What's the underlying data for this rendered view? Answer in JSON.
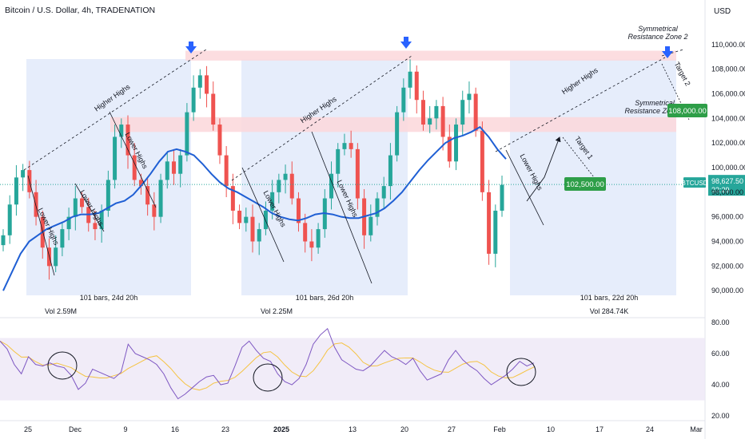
{
  "header": {
    "title": "Bitcoin / U.S. Dollar, 4h, TRADENATION",
    "currency": "USD"
  },
  "chart_data": {
    "type": "line",
    "price_axis": {
      "ylim": [
        88000,
        112000
      ],
      "ticks": [
        "110,000.00",
        "108,000.00",
        "106,000.00",
        "104,000.00",
        "102,000.00",
        "100,000.00",
        "98,000.00",
        "96,000.00",
        "94,000.00",
        "92,000.00",
        "90,000.00"
      ]
    },
    "rsi_axis": {
      "ylim": [
        18,
        82
      ],
      "ticks": [
        "80.00",
        "60.00",
        "40.00",
        "20.00"
      ]
    },
    "time_axis": {
      "labels": [
        "25",
        "Dec",
        "9",
        "16",
        "23",
        "2025",
        "13",
        "20",
        "27",
        "Feb",
        "10",
        "17",
        "24",
        "Mar"
      ],
      "bold": [
        "2025"
      ]
    },
    "current_price": {
      "symbol": "BTCUSD",
      "value": "98,627.50",
      "countdown": "33:29",
      "y": 98627.5
    },
    "series": [
      {
        "kind": "candles",
        "x": [
          0,
          1,
          2,
          3,
          4,
          5,
          6,
          7,
          8,
          9,
          10,
          11,
          12,
          13,
          14,
          15,
          16,
          17,
          18,
          19,
          20,
          21,
          22,
          23,
          24,
          25,
          26,
          27,
          28,
          29,
          30,
          31,
          32,
          33,
          34,
          35,
          36,
          37,
          38,
          39,
          40,
          41,
          42,
          43,
          44,
          45,
          46,
          47,
          48,
          49,
          50,
          51,
          52,
          53,
          54,
          55,
          56,
          57,
          58,
          59,
          60,
          61,
          62,
          63,
          64,
          65,
          66,
          67,
          68,
          69,
          70,
          71,
          72,
          73,
          74,
          75,
          76
        ],
        "close": [
          94500,
          97000,
          99200,
          99800,
          98000,
          96000,
          93500,
          92000,
          93500,
          95000,
          96000,
          97500,
          96800,
          95500,
          95000,
          96500,
          99000,
          102500,
          103500,
          101000,
          99000,
          98500,
          97000,
          96000,
          99000,
          100500,
          99500,
          101000,
          104500,
          106500,
          107500,
          106000,
          103500,
          101000,
          98500,
          96500,
          95500,
          96000,
          94000,
          95000,
          96500,
          98000,
          99000,
          99500,
          97500,
          95500,
          94000,
          93500,
          95000,
          97500,
          99500,
          101500,
          102000,
          101500,
          97500,
          94500,
          96000,
          97500,
          98500,
          101000,
          104500,
          106500,
          107800,
          105500,
          103500,
          104000,
          105000,
          102500,
          100500,
          103500,
          105500,
          106000,
          103000,
          98000,
          93000,
          96500,
          98600
        ]
      },
      {
        "kind": "moving-average",
        "name": "",
        "values": [
          90000,
          91500,
          93000,
          94000,
          94500,
          95000,
          95300,
          95600,
          96000,
          96200,
          96200,
          96300,
          96700,
          97100,
          97300,
          97800,
          98600,
          99500,
          100500,
          101300,
          101500,
          101300,
          101000,
          100300,
          99500,
          98800,
          98300,
          98000,
          97600,
          97200,
          96800,
          96300,
          96000,
          95800,
          95700,
          95900,
          96200,
          96300,
          96200,
          96000,
          95900,
          95900,
          96100,
          96300,
          96700,
          97300,
          98000,
          98900,
          99800,
          100600,
          101300,
          102000,
          102400,
          102600,
          102900,
          103300,
          102500,
          101500,
          100700
        ]
      },
      {
        "kind": "rsi",
        "values": [
          68,
          63,
          53,
          47,
          58,
          53,
          52,
          54,
          52,
          51,
          46,
          37,
          41,
          50,
          48,
          46,
          44,
          48,
          66,
          60,
          58,
          56,
          53,
          47,
          38,
          31,
          34,
          38,
          42,
          45,
          46,
          40,
          41,
          52,
          64,
          68,
          62,
          57,
          55,
          47,
          42,
          40,
          44,
          53,
          66,
          72,
          76,
          64,
          56,
          53,
          50,
          49,
          52,
          57,
          62,
          58,
          56,
          53,
          57,
          49,
          43,
          45,
          47,
          56,
          62,
          56,
          52,
          49,
          44,
          40,
          43,
          46,
          50,
          55,
          52,
          54
        ]
      }
    ],
    "rsi_band": [
      30,
      70
    ],
    "zones": [
      {
        "label": "Symmetrical\nResistance Zone 2",
        "y1": 108700,
        "y2": 109500
      },
      {
        "label": "Symmetrical\nResistance Zone 1",
        "y1": 102900,
        "y2": 104100
      }
    ],
    "projection_boxes": [
      {
        "bars": "101 bars, 24d 20h",
        "vol": "Vol 2.59M"
      },
      {
        "bars": "101 bars, 26d 20h",
        "vol": "Vol 2.25M"
      },
      {
        "bars": "101 bars, 22d 20h",
        "vol": "Vol 284.74K"
      }
    ],
    "annotations": {
      "higher_highs": [
        "Higher Highs",
        "Higher Highs",
        "Higher Highs",
        "Higher Highs"
      ],
      "lower_highs": [
        "Lower Highs",
        "Lower Highs",
        "Lower Highs",
        "Lower Highs",
        "Lower Highs",
        "Lower Highs"
      ],
      "targets": [
        {
          "label": "Target 1",
          "value": "102,500.00",
          "price": 102500
        },
        {
          "label": "Target 2",
          "value": "108,000.00",
          "price": 108000
        }
      ]
    },
    "colors": {
      "up": "#26a69a",
      "down": "#ef5350",
      "ma": "#1f5fd4",
      "rsi": "#7e57c2",
      "rsi_ma": "#f5c342",
      "box": "#dde7fa",
      "zone": "#fbd7da",
      "target": "#2e9e48",
      "price_tag": "#26a69a",
      "arrow": "#2962ff"
    }
  }
}
